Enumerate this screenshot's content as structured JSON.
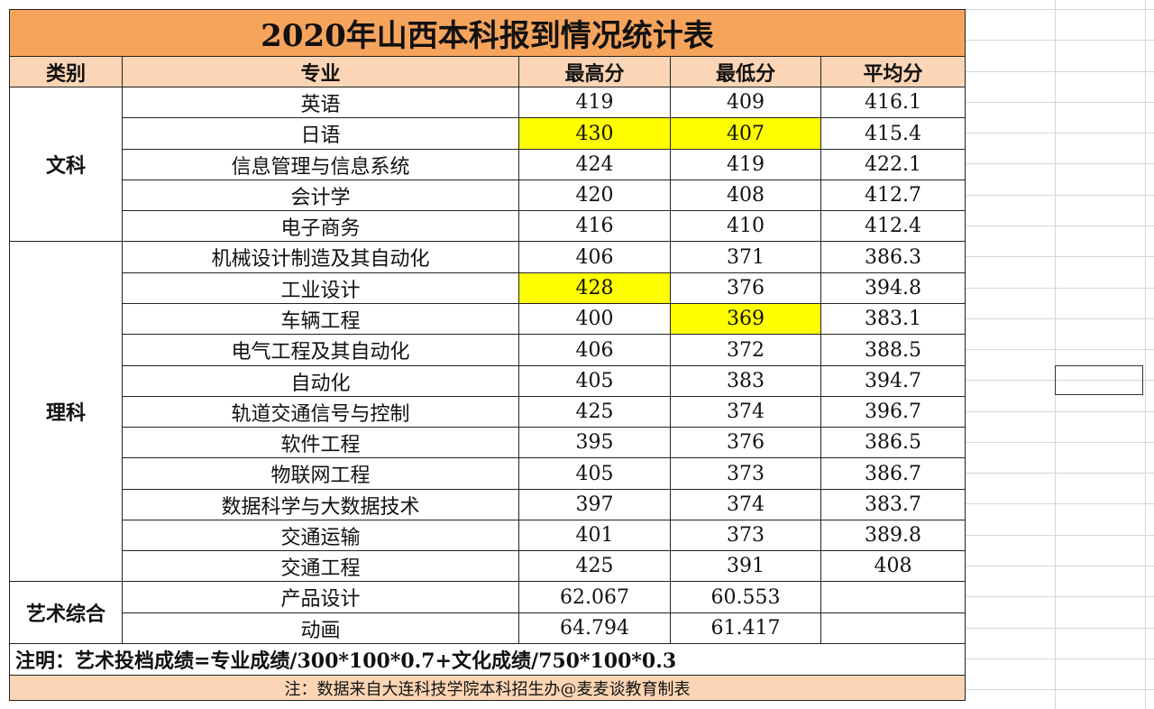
{
  "title": "2020年山西本科报到情况统计表",
  "header": [
    "类别",
    "专业",
    "最高分",
    "最低分",
    "平均分"
  ],
  "highlight_color": "#ffff00",
  "groups": [
    {
      "category": "文科",
      "rows": [
        [
          "英语",
          "419",
          "409",
          "416.1"
        ],
        [
          "日语",
          {
            "text": "430",
            "highlight": true
          },
          {
            "text": "407",
            "highlight": true
          },
          "415.4"
        ],
        [
          "信息管理与信息系统",
          "424",
          "419",
          "422.1"
        ],
        [
          "会计学",
          "420",
          "408",
          "412.7"
        ],
        [
          "电子商务",
          "416",
          "410",
          "412.4"
        ]
      ]
    },
    {
      "category": "理科",
      "rows": [
        [
          "机械设计制造及其自动化",
          "406",
          "371",
          "386.3"
        ],
        [
          "工业设计",
          {
            "text": "428",
            "highlight": true
          },
          "376",
          "394.8"
        ],
        [
          "车辆工程",
          "400",
          {
            "text": "369",
            "highlight": true
          },
          "383.1"
        ],
        [
          "电气工程及其自动化",
          "406",
          "372",
          "388.5"
        ],
        [
          "自动化",
          "405",
          "383",
          "394.7"
        ],
        [
          "轨道交通信号与控制",
          "425",
          "374",
          "396.7"
        ],
        [
          "软件工程",
          "395",
          "376",
          "386.5"
        ],
        [
          "物联网工程",
          "405",
          "373",
          "386.7"
        ],
        [
          "数据科学与大数据技术",
          "397",
          "374",
          "383.7"
        ],
        [
          "交通运输",
          "401",
          "373",
          "389.8"
        ],
        [
          "交通工程",
          "425",
          "391",
          "408"
        ]
      ]
    },
    {
      "category": "艺术综合",
      "rows": [
        [
          "产品设计",
          "62.067",
          "60.553"
        ],
        [
          "动画",
          "64.794",
          "61.417"
        ]
      ]
    }
  ],
  "note": "注明：艺术投档成绩=专业成绩/300*100*0.7+文化成绩/750*100*0.3",
  "footnote": "注：数据来自大连科技学院本科招生办@麦麦谈教育制表"
}
